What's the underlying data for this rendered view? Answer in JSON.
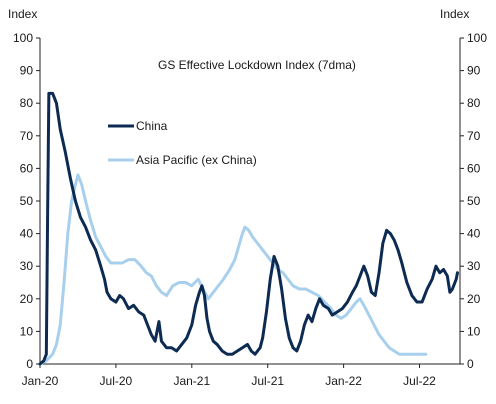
{
  "chart_data": {
    "type": "line",
    "title": "GS Effective Lockdown Index (7dma)",
    "ylabel_left": "Index",
    "ylabel_right": "Index",
    "ylim": [
      0,
      100
    ],
    "y_ticks": [
      "0",
      "10",
      "20",
      "30",
      "40",
      "50",
      "60",
      "70",
      "80",
      "90",
      "100"
    ],
    "x_ticks": [
      {
        "label": "Jan-20",
        "t": 0
      },
      {
        "label": "Jul-20",
        "t": 6
      },
      {
        "label": "Jan-21",
        "t": 12
      },
      {
        "label": "Jul-21",
        "t": 18
      },
      {
        "label": "Jan-22",
        "t": 24
      },
      {
        "label": "Jul-22",
        "t": 30
      }
    ],
    "x_unit": "months since Jan-20",
    "xlim": [
      0,
      33.2
    ],
    "grid": false,
    "legend_position": "upper-left",
    "series": [
      {
        "name": "China",
        "color": "#0d2b52",
        "stroke_width": 3,
        "points": [
          [
            0.0,
            0
          ],
          [
            0.3,
            1
          ],
          [
            0.5,
            3
          ],
          [
            0.6,
            45
          ],
          [
            0.7,
            83
          ],
          [
            1.0,
            83
          ],
          [
            1.3,
            80
          ],
          [
            1.6,
            72
          ],
          [
            2.0,
            65
          ],
          [
            2.4,
            57
          ],
          [
            2.8,
            50
          ],
          [
            3.2,
            45
          ],
          [
            3.6,
            42
          ],
          [
            4.0,
            38
          ],
          [
            4.4,
            35
          ],
          [
            4.8,
            30
          ],
          [
            5.1,
            26
          ],
          [
            5.3,
            22
          ],
          [
            5.6,
            20
          ],
          [
            6.0,
            19
          ],
          [
            6.3,
            21
          ],
          [
            6.6,
            20
          ],
          [
            7.0,
            17
          ],
          [
            7.4,
            18
          ],
          [
            7.8,
            16
          ],
          [
            8.2,
            15
          ],
          [
            8.5,
            12
          ],
          [
            8.8,
            9
          ],
          [
            9.1,
            7
          ],
          [
            9.4,
            13
          ],
          [
            9.6,
            7
          ],
          [
            10.0,
            5
          ],
          [
            10.4,
            5
          ],
          [
            10.8,
            4
          ],
          [
            11.2,
            6
          ],
          [
            11.6,
            8
          ],
          [
            12.0,
            12
          ],
          [
            12.3,
            18
          ],
          [
            12.6,
            22
          ],
          [
            12.8,
            24
          ],
          [
            13.0,
            21
          ],
          [
            13.2,
            14
          ],
          [
            13.4,
            10
          ],
          [
            13.7,
            7
          ],
          [
            14.0,
            6
          ],
          [
            14.4,
            4
          ],
          [
            14.8,
            3
          ],
          [
            15.2,
            3
          ],
          [
            15.6,
            4
          ],
          [
            16.0,
            5
          ],
          [
            16.4,
            6
          ],
          [
            16.7,
            4
          ],
          [
            17.0,
            3
          ],
          [
            17.4,
            5
          ],
          [
            17.6,
            8
          ],
          [
            17.9,
            16
          ],
          [
            18.2,
            26
          ],
          [
            18.5,
            33
          ],
          [
            18.8,
            30
          ],
          [
            19.1,
            23
          ],
          [
            19.4,
            14
          ],
          [
            19.7,
            8
          ],
          [
            20.0,
            5
          ],
          [
            20.3,
            4
          ],
          [
            20.6,
            7
          ],
          [
            20.9,
            12
          ],
          [
            21.2,
            15
          ],
          [
            21.5,
            13
          ],
          [
            21.8,
            17
          ],
          [
            22.1,
            20
          ],
          [
            22.4,
            18
          ],
          [
            22.8,
            17
          ],
          [
            23.1,
            15
          ],
          [
            23.5,
            16
          ],
          [
            23.9,
            17
          ],
          [
            24.3,
            19
          ],
          [
            24.7,
            22
          ],
          [
            25.0,
            24
          ],
          [
            25.3,
            27
          ],
          [
            25.6,
            30
          ],
          [
            25.9,
            27
          ],
          [
            26.2,
            22
          ],
          [
            26.5,
            21
          ],
          [
            26.8,
            28
          ],
          [
            27.1,
            37
          ],
          [
            27.4,
            41
          ],
          [
            27.7,
            40
          ],
          [
            28.0,
            38
          ],
          [
            28.3,
            35
          ],
          [
            28.6,
            31
          ],
          [
            29.0,
            25
          ],
          [
            29.4,
            21
          ],
          [
            29.8,
            19
          ],
          [
            30.2,
            19
          ],
          [
            30.6,
            23
          ],
          [
            31.0,
            26
          ],
          [
            31.3,
            30
          ],
          [
            31.6,
            28
          ],
          [
            31.9,
            29
          ],
          [
            32.2,
            27
          ],
          [
            32.4,
            22
          ],
          [
            32.6,
            23
          ],
          [
            32.9,
            26
          ],
          [
            33.0,
            28
          ]
        ]
      },
      {
        "name": "Asia Pacific (ex China)",
        "color": "#a8d0ec",
        "stroke_width": 3,
        "points": [
          [
            0.0,
            0
          ],
          [
            0.5,
            1
          ],
          [
            1.0,
            3
          ],
          [
            1.3,
            6
          ],
          [
            1.6,
            12
          ],
          [
            1.9,
            25
          ],
          [
            2.2,
            40
          ],
          [
            2.5,
            50
          ],
          [
            2.8,
            55
          ],
          [
            3.0,
            58
          ],
          [
            3.3,
            55
          ],
          [
            3.6,
            50
          ],
          [
            4.0,
            44
          ],
          [
            4.4,
            39
          ],
          [
            4.8,
            36
          ],
          [
            5.2,
            33
          ],
          [
            5.6,
            31
          ],
          [
            6.0,
            31
          ],
          [
            6.5,
            31
          ],
          [
            7.0,
            32
          ],
          [
            7.5,
            32
          ],
          [
            8.0,
            30
          ],
          [
            8.4,
            28
          ],
          [
            8.8,
            27
          ],
          [
            9.2,
            24
          ],
          [
            9.6,
            22
          ],
          [
            10.0,
            21
          ],
          [
            10.5,
            24
          ],
          [
            11.0,
            25
          ],
          [
            11.5,
            25
          ],
          [
            12.0,
            24
          ],
          [
            12.5,
            26
          ],
          [
            12.9,
            23
          ],
          [
            13.3,
            20
          ],
          [
            13.7,
            22
          ],
          [
            14.1,
            24
          ],
          [
            14.5,
            26
          ],
          [
            15.0,
            29
          ],
          [
            15.4,
            32
          ],
          [
            15.7,
            36
          ],
          [
            16.0,
            40
          ],
          [
            16.2,
            42
          ],
          [
            16.5,
            41
          ],
          [
            16.8,
            39
          ],
          [
            17.2,
            37
          ],
          [
            17.6,
            35
          ],
          [
            18.0,
            33
          ],
          [
            18.4,
            31
          ],
          [
            18.8,
            29
          ],
          [
            19.2,
            28
          ],
          [
            19.6,
            26
          ],
          [
            20.0,
            24
          ],
          [
            20.5,
            23
          ],
          [
            21.0,
            23
          ],
          [
            21.5,
            22
          ],
          [
            22.0,
            21
          ],
          [
            22.5,
            19
          ],
          [
            23.0,
            17
          ],
          [
            23.4,
            15
          ],
          [
            23.8,
            14
          ],
          [
            24.2,
            15
          ],
          [
            24.6,
            17
          ],
          [
            25.0,
            19
          ],
          [
            25.3,
            20
          ],
          [
            25.6,
            18
          ],
          [
            26.0,
            15
          ],
          [
            26.4,
            12
          ],
          [
            26.8,
            9
          ],
          [
            27.2,
            7
          ],
          [
            27.6,
            5
          ],
          [
            28.0,
            4
          ],
          [
            28.4,
            3
          ],
          [
            28.8,
            3
          ],
          [
            29.2,
            3
          ],
          [
            29.6,
            3
          ],
          [
            30.0,
            3
          ],
          [
            30.5,
            3
          ]
        ]
      }
    ]
  }
}
